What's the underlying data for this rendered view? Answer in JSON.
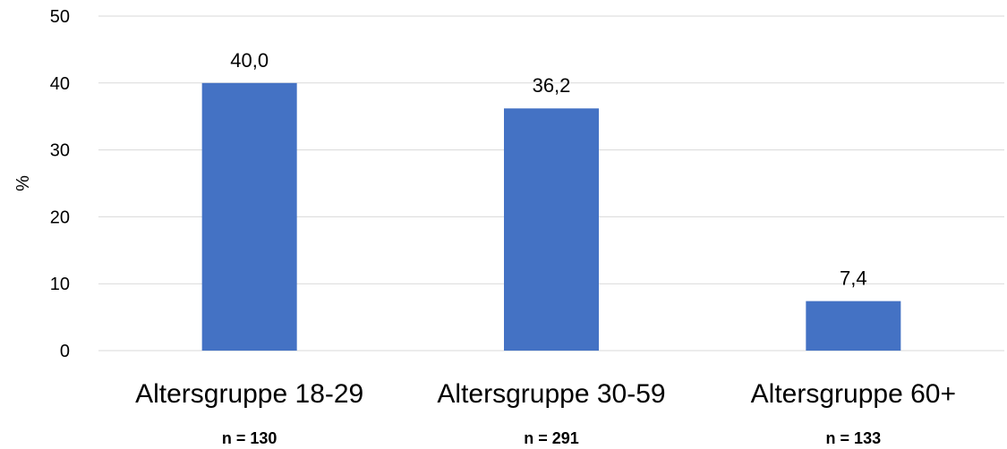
{
  "chart_data": {
    "type": "bar",
    "categories": [
      "Altersgruppe 18-29",
      "Altersgruppe 30-59",
      "Altersgruppe 60+"
    ],
    "sample_sizes": [
      "n = 130",
      "n = 291",
      "n = 133"
    ],
    "values": [
      40.0,
      36.2,
      7.4
    ],
    "data_labels": [
      "40,0",
      "36,2",
      "7,4"
    ],
    "title": "",
    "xlabel": "",
    "ylabel": "%",
    "ylim": [
      0,
      50
    ],
    "yticks": [
      0,
      10,
      20,
      30,
      40,
      50
    ],
    "grid": true,
    "legend": "none",
    "bar_color": "#4472c4",
    "grid_color": "#d9d9d9"
  }
}
